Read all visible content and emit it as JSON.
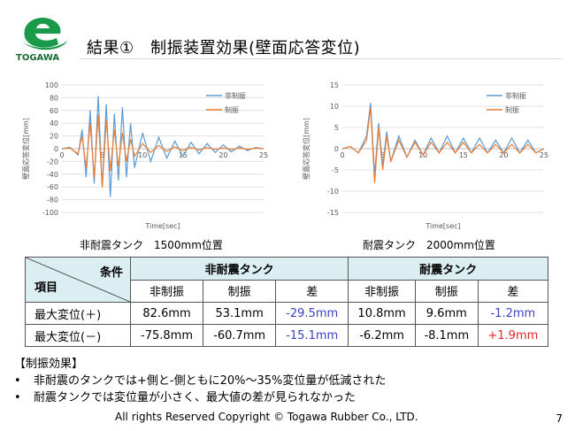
{
  "header": {
    "logo_text": "TOGAWA",
    "title": "結果①　制振装置効果(壁面応答変位)"
  },
  "charts": [
    {
      "caption": "非耐震タンク　1500mm位置",
      "chart_data": {
        "type": "line",
        "title": "",
        "xlabel": "Time[sec]",
        "ylabel": "壁面応答変位[mm]",
        "xlim": [
          0,
          25
        ],
        "ylim": [
          -100,
          100
        ],
        "xticks": [
          "0",
          "5",
          "10",
          "15",
          "20",
          "25"
        ],
        "yticks": [
          "100",
          "80",
          "60",
          "40",
          "20",
          "0",
          "-20",
          "-40",
          "-60",
          "-80",
          "-100"
        ],
        "legend": [
          "非制振",
          "制振"
        ],
        "series": [
          {
            "name": "非制振",
            "color": "#5b9bd5",
            "x": [
              0,
              1,
              2,
              2.5,
              3,
              3.5,
              4,
              4.5,
              5,
              5.5,
              6,
              6.5,
              7,
              7.5,
              8,
              8.5,
              9,
              10,
              11,
              12,
              13,
              14,
              15,
              16,
              17,
              18,
              19,
              20,
              21,
              22,
              23,
              24,
              25
            ],
            "y": [
              0,
              2,
              -10,
              30,
              -45,
              60,
              -55,
              82.6,
              -60,
              70,
              -75.8,
              55,
              -50,
              65,
              -45,
              40,
              -30,
              25,
              -20,
              18,
              -15,
              12,
              -12,
              10,
              -8,
              8,
              -6,
              6,
              -5,
              4,
              -3,
              2,
              0
            ]
          },
          {
            "name": "制振",
            "color": "#ed7d31",
            "x": [
              0,
              1,
              2,
              2.5,
              3,
              3.5,
              4,
              4.5,
              5,
              5.5,
              6,
              6.5,
              7,
              7.5,
              8,
              8.5,
              9,
              10,
              11,
              12,
              13,
              14,
              15,
              16,
              17,
              18,
              19,
              20,
              21,
              22,
              23,
              24,
              25
            ],
            "y": [
              0,
              1,
              -8,
              20,
              -30,
              40,
              -45,
              53.1,
              -60.7,
              45,
              -35,
              30,
              -28,
              25,
              -20,
              15,
              -12,
              8,
              -6,
              5,
              -4,
              3,
              -3,
              2,
              -2,
              2,
              -1,
              1,
              -1,
              1,
              -1,
              1,
              0
            ]
          }
        ]
      }
    },
    {
      "caption": "耐震タンク　2000mm位置",
      "chart_data": {
        "type": "line",
        "title": "",
        "xlabel": "Time[sec]",
        "ylabel": "壁面応答変位[mm]",
        "xlim": [
          0,
          25
        ],
        "ylim": [
          -15,
          15
        ],
        "xticks": [
          "0",
          "5",
          "10",
          "15",
          "20",
          "25"
        ],
        "yticks": [
          "15",
          "10",
          "5",
          "0",
          "-5",
          "-10",
          "-15"
        ],
        "legend": [
          "非制振",
          "制振"
        ],
        "series": [
          {
            "name": "非制振",
            "color": "#5b9bd5",
            "x": [
              0,
              1,
              2,
              3,
              3.5,
              4,
              4.5,
              5,
              5.5,
              6,
              7,
              8,
              9,
              10,
              11,
              12,
              13,
              14,
              15,
              16,
              17,
              18,
              19,
              20,
              21,
              22,
              23,
              24,
              25
            ],
            "y": [
              0,
              0.5,
              -1,
              3,
              10.8,
              -6.2,
              6,
              -4,
              4,
              -3,
              3,
              -2,
              2,
              -1.5,
              2.5,
              -1,
              3,
              -1,
              2.5,
              -1,
              2.5,
              -1,
              2,
              -1,
              2.5,
              -1,
              2,
              -1,
              0
            ]
          },
          {
            "name": "制振",
            "color": "#ed7d31",
            "x": [
              0,
              1,
              2,
              3,
              3.5,
              4,
              4.5,
              5,
              5.5,
              6,
              7,
              8,
              9,
              10,
              11,
              12,
              13,
              14,
              15,
              16,
              17,
              18,
              19,
              20,
              21,
              22,
              23,
              24,
              25
            ],
            "y": [
              0,
              0.5,
              -1,
              2,
              9.6,
              -8.1,
              5,
              -5,
              3,
              -3,
              2,
              -2,
              1.5,
              -1.5,
              1.5,
              -1,
              1.5,
              -1,
              1.5,
              -1,
              1,
              -1,
              1,
              -1,
              1,
              -1,
              1,
              -1,
              0
            ]
          }
        ]
      }
    }
  ],
  "table": {
    "corner_top": "条件",
    "corner_bottom": "項目",
    "group_headers": [
      "非耐震タンク",
      "耐震タンク"
    ],
    "sub_headers": [
      "非制振",
      "制振",
      "差",
      "非制振",
      "制振",
      "差"
    ],
    "rows": [
      {
        "label": "最大変位(＋)",
        "cells": [
          "82.6mm",
          "53.1mm",
          "-29.5mm",
          "10.8mm",
          "9.6mm",
          "-1.2mm"
        ]
      },
      {
        "label": "最大変位(－)",
        "cells": [
          "-75.8mm",
          "-60.7mm",
          "-15.1mm",
          "-6.2mm",
          "-8.1mm",
          "+1.9mm"
        ]
      }
    ]
  },
  "notes": {
    "heading": "【制振効果】",
    "bullet_symbol": "•",
    "items": [
      "非耐震のタンクでは+側と-側ともに20%～35%変位量が低減された",
      "耐震タンクでは変位量が小さく、最大値の差が見られなかった"
    ]
  },
  "footer": {
    "copyright": "All  rights Reserved Copyright  © Togawa Rubber Co., LTD.",
    "page_number": "7"
  }
}
